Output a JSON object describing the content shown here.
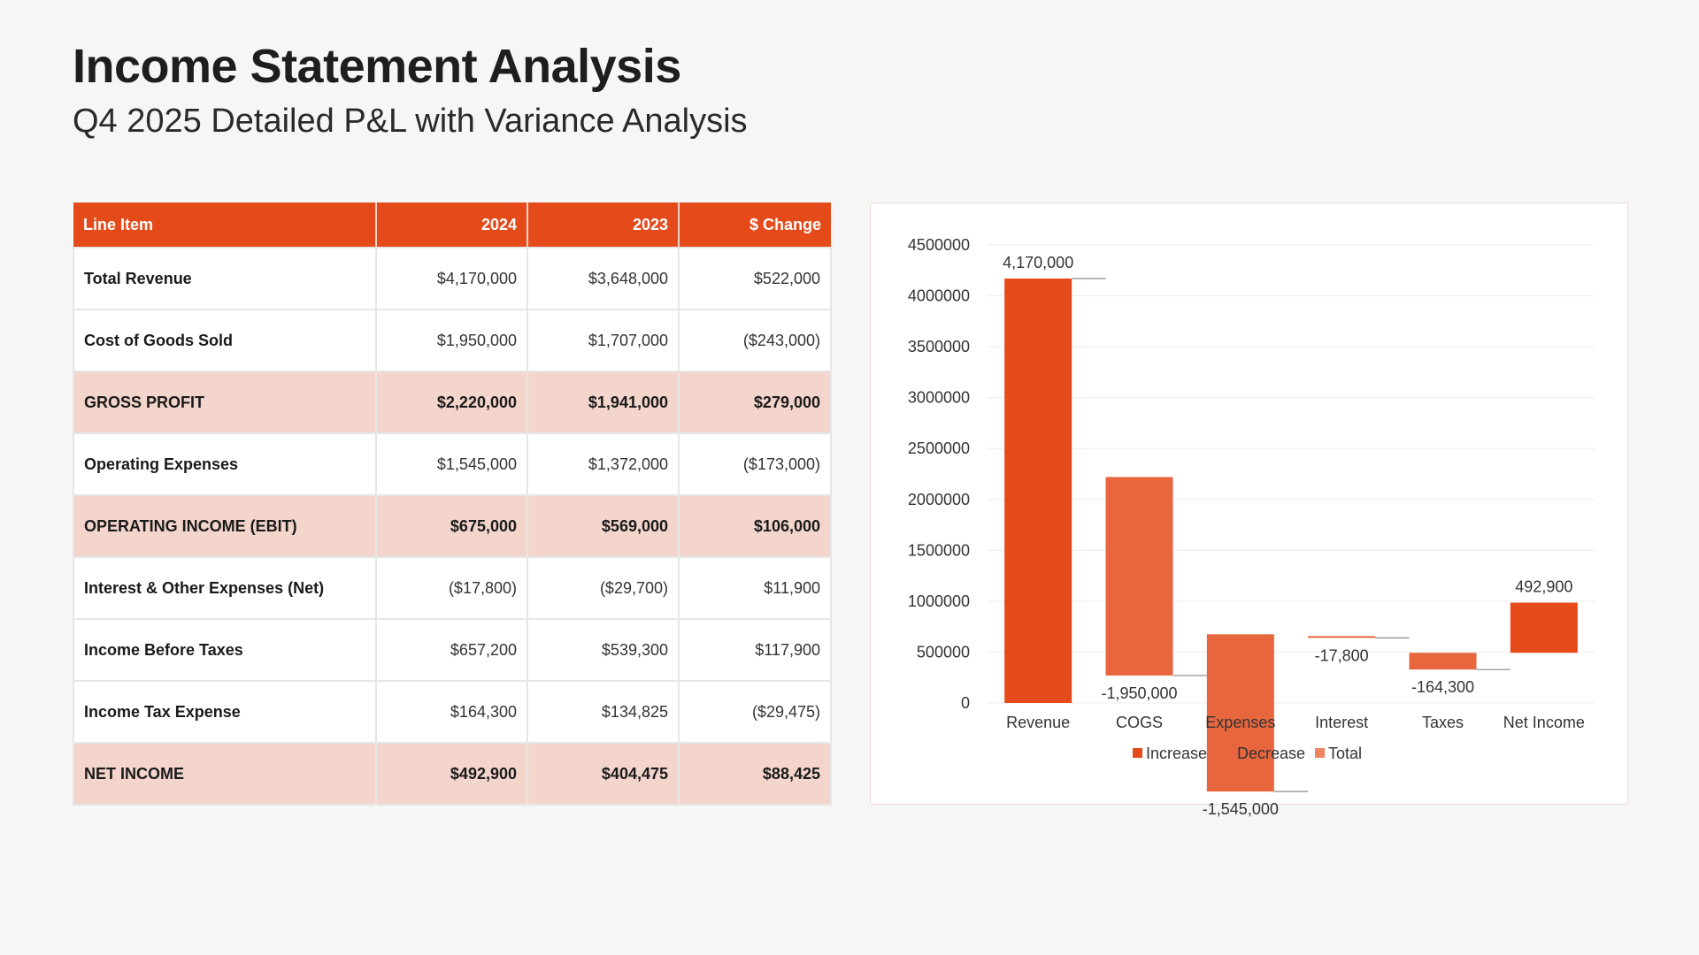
{
  "header": {
    "title": "Income Statement Analysis",
    "subtitle": "Q4 2025 Detailed P&L with Variance Analysis"
  },
  "table": {
    "columns": [
      "Line Item",
      "2024",
      "2023",
      "$ Change"
    ],
    "rows": [
      {
        "label": "Total Revenue",
        "c2024": "$4,170,000",
        "c2023": "$3,648,000",
        "change": "$522,000",
        "highlight": false
      },
      {
        "label": "Cost of Goods Sold",
        "c2024": "$1,950,000",
        "c2023": "$1,707,000",
        "change": "($243,000)",
        "highlight": false
      },
      {
        "label": "GROSS PROFIT",
        "c2024": "$2,220,000",
        "c2023": "$1,941,000",
        "change": "$279,000",
        "highlight": true
      },
      {
        "label": "Operating Expenses",
        "c2024": "$1,545,000",
        "c2023": "$1,372,000",
        "change": "($173,000)",
        "highlight": false
      },
      {
        "label": "OPERATING INCOME (EBIT)",
        "c2024": "$675,000",
        "c2023": "$569,000",
        "change": "$106,000",
        "highlight": true
      },
      {
        "label": "Interest & Other Expenses (Net)",
        "c2024": "($17,800)",
        "c2023": "($29,700)",
        "change": "$11,900",
        "highlight": false
      },
      {
        "label": "Income Before Taxes",
        "c2024": "$657,200",
        "c2023": "$539,300",
        "change": "$117,900",
        "highlight": false
      },
      {
        "label": "Income Tax Expense",
        "c2024": "$164,300",
        "c2023": "$134,825",
        "change": "($29,475)",
        "highlight": false
      },
      {
        "label": "NET INCOME",
        "c2024": "$492,900",
        "c2023": "$404,475",
        "change": "$88,425",
        "highlight": true
      }
    ]
  },
  "colors": {
    "increase": "#e54a1b",
    "decrease": "#e8663e",
    "total": "#ee8462",
    "header": "#e54a1b",
    "highlight_row": "#f3d5cc"
  },
  "chart_data": {
    "type": "bar",
    "subtype": "waterfall",
    "categories": [
      "Revenue",
      "COGS",
      "Expenses",
      "Interest",
      "Taxes",
      "Net Income"
    ],
    "values": [
      4170000,
      -1950000,
      -1545000,
      -17800,
      -164300,
      492900
    ],
    "bases": [
      0,
      2220000,
      675000,
      657200,
      492900,
      492900
    ],
    "kinds": [
      "increase",
      "decrease",
      "decrease",
      "decrease",
      "decrease",
      "increase"
    ],
    "data_labels": [
      "4,170,000",
      "-1,950,000",
      "-1,545,000",
      "-17,800",
      "-164,300",
      "492,900"
    ],
    "yticks": [
      "0",
      "500000",
      "1000000",
      "1500000",
      "2000000",
      "2500000",
      "3000000",
      "3500000",
      "4000000",
      "4500000"
    ],
    "ylim": [
      0,
      4500000
    ],
    "legend": [
      "Increase",
      "Decrease",
      "Total"
    ],
    "legend_position": "bottom",
    "grid": true,
    "connectors": true
  }
}
